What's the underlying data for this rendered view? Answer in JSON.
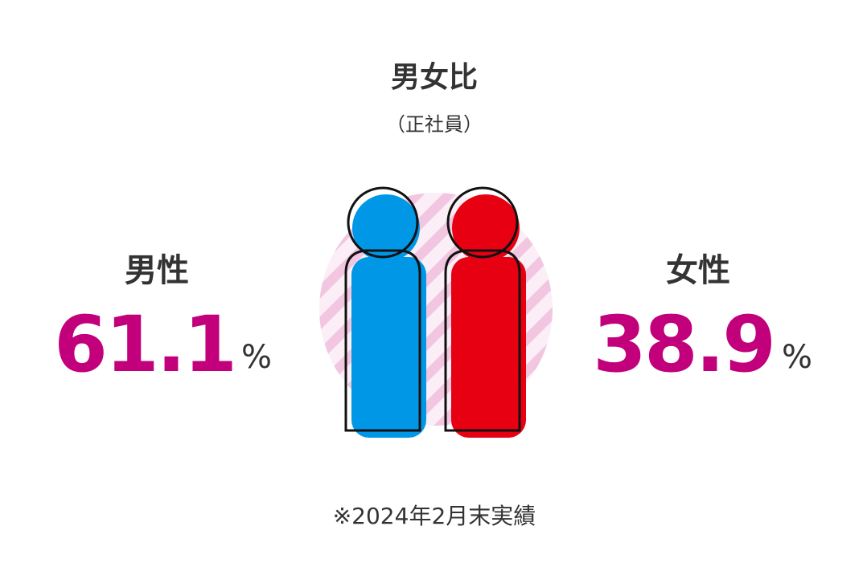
{
  "header": {
    "title": "男女比",
    "subtitle": "（正社員）"
  },
  "male": {
    "label": "男性",
    "value": 61.1,
    "unit": "%"
  },
  "female": {
    "label": "女性",
    "value": 38.9,
    "unit": "%"
  },
  "note": "※2024年2月末実績"
}
